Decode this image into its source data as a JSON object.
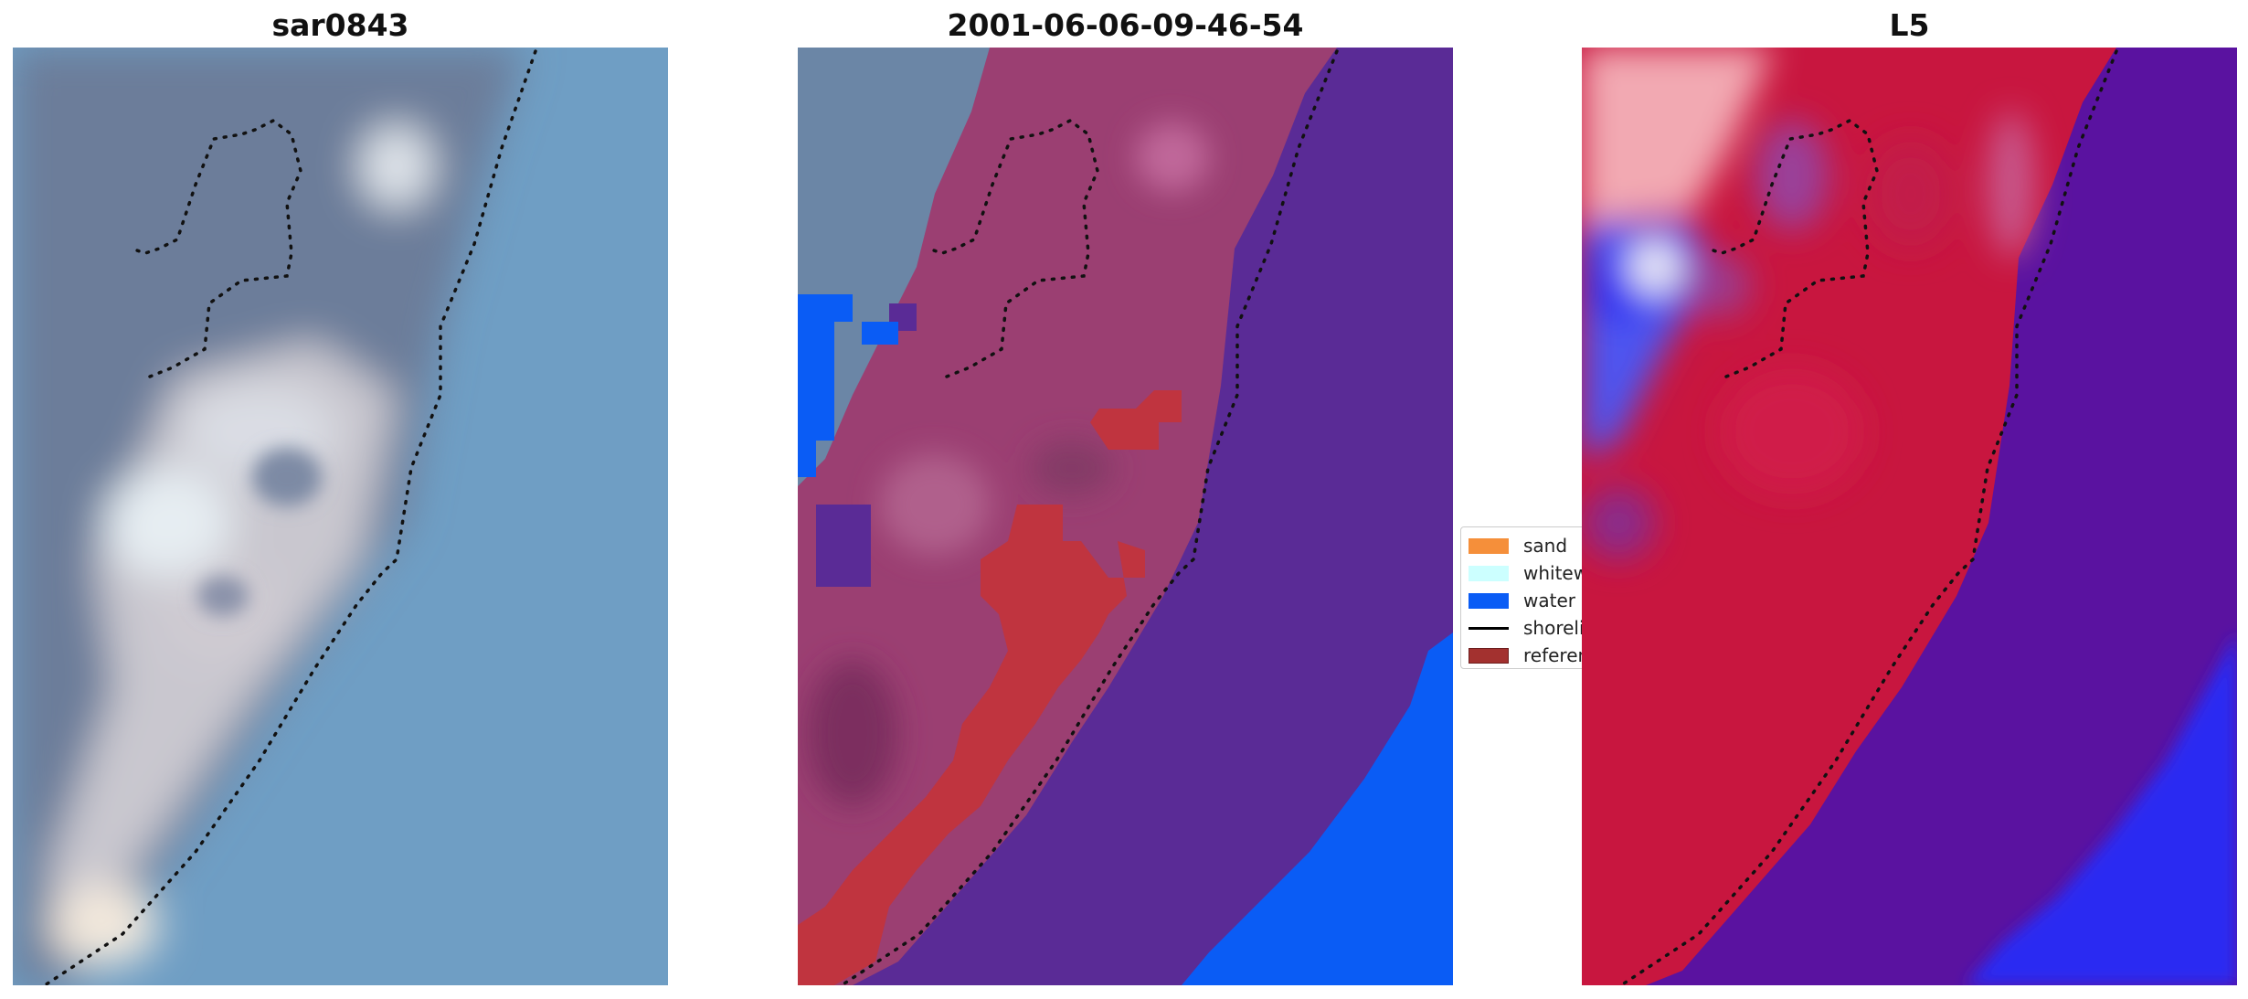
{
  "panels": [
    {
      "title": "sar0843"
    },
    {
      "title": "2001-06-06-09-46-54"
    },
    {
      "title": "L5"
    }
  ],
  "legend": {
    "items": [
      {
        "label": "sand",
        "color": "#f58f3a",
        "icon": "patch"
      },
      {
        "label": "whitewater",
        "color": "#ccffff",
        "icon": "patch"
      },
      {
        "label": "water",
        "color": "#0a5cf5",
        "icon": "patch"
      },
      {
        "label": "shoreline",
        "color": "#000000",
        "icon": "line"
      },
      {
        "label": "reference",
        "color": "#a3312f",
        "icon": "patch"
      }
    ]
  },
  "colors": {
    "sar_water": "#6f9ec4",
    "sar_land": "#6c7d9a",
    "sar_bright": "#e9ecef",
    "class_land_overlay": "#9b3f72",
    "class_sea": "#5a2b96",
    "class_water": "#0a5cf5",
    "class_sand": "#c0343f",
    "class_topleft": "#6b86a6",
    "l5_red": "#c8163f",
    "l5_pink": "#f2a9b2",
    "l5_blue": "#4d55f0",
    "l5_purple": "#5a12a0",
    "l5_deepblue": "#2a2cf2"
  }
}
